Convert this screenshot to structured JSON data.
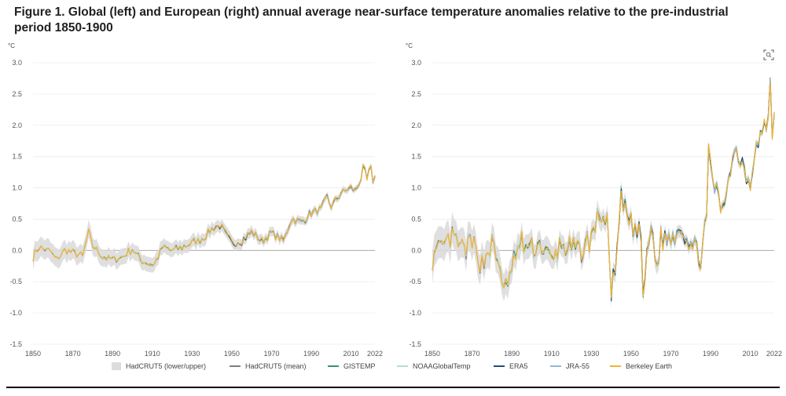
{
  "figure": {
    "title": "Figure 1. Global (left) and European (right) annual average near-surface temperature anomalies relative to the pre-industrial period 1850-1900"
  },
  "toolbar": {
    "expand_icon": "expand-icon"
  },
  "colors": {
    "band": "#dcdcdc",
    "HadCRUT5 (mean)": "#7f7f7f",
    "GISTEMP": "#3f8f6f",
    "NOAAGlobalTemp": "#b5ded4",
    "ERA5": "#1f4e79",
    "JRA-55": "#8fb8e0",
    "Berkeley Earth": "#f2b233"
  },
  "legend": [
    {
      "label": "HadCRUT5 (lower/upper)",
      "kind": "box"
    },
    {
      "label": "HadCRUT5 (mean)",
      "kind": "line"
    },
    {
      "label": "GISTEMP",
      "kind": "line"
    },
    {
      "label": "NOAAGlobalTemp",
      "kind": "line"
    },
    {
      "label": "ERA5",
      "kind": "line"
    },
    {
      "label": "JRA-55",
      "kind": "line"
    },
    {
      "label": "Berkeley Earth",
      "kind": "line"
    }
  ],
  "chart_data": [
    {
      "type": "line",
      "title": "Global",
      "ylabel": "°C",
      "ylim": [
        -1.5,
        3.0
      ],
      "yticks": [
        "3.0",
        "2.5",
        "2.0",
        "1.5",
        "1.0",
        "0.5",
        "0.0",
        "-0.5",
        "-1.0",
        "-1.5"
      ],
      "xlim": [
        1850,
        2022
      ],
      "xticks": [
        "1850",
        "1870",
        "1890",
        "1910",
        "1930",
        "1950",
        "1970",
        "1990",
        "2010",
        "2022"
      ],
      "keypoints": [
        [
          1850,
          -0.1
        ],
        [
          1853,
          0.05
        ],
        [
          1858,
          0.0
        ],
        [
          1862,
          -0.15
        ],
        [
          1866,
          0.0
        ],
        [
          1870,
          -0.03
        ],
        [
          1875,
          -0.1
        ],
        [
          1878,
          0.3
        ],
        [
          1880,
          0.08
        ],
        [
          1885,
          -0.1
        ],
        [
          1890,
          -0.15
        ],
        [
          1895,
          -0.1
        ],
        [
          1900,
          0.02
        ],
        [
          1904,
          -0.15
        ],
        [
          1909,
          -0.22
        ],
        [
          1911,
          -0.22
        ],
        [
          1915,
          0.05
        ],
        [
          1920,
          0.0
        ],
        [
          1925,
          0.05
        ],
        [
          1930,
          0.12
        ],
        [
          1936,
          0.2
        ],
        [
          1940,
          0.35
        ],
        [
          1944,
          0.4
        ],
        [
          1950,
          0.12
        ],
        [
          1955,
          0.15
        ],
        [
          1960,
          0.3
        ],
        [
          1965,
          0.15
        ],
        [
          1970,
          0.28
        ],
        [
          1976,
          0.15
        ],
        [
          1980,
          0.5
        ],
        [
          1985,
          0.45
        ],
        [
          1990,
          0.6
        ],
        [
          1995,
          0.65
        ],
        [
          1998,
          0.85
        ],
        [
          2000,
          0.7
        ],
        [
          2005,
          0.92
        ],
        [
          2010,
          1.0
        ],
        [
          2012,
          0.95
        ],
        [
          2015,
          1.15
        ],
        [
          2016,
          1.3
        ],
        [
          2017,
          1.25
        ],
        [
          2018,
          1.12
        ],
        [
          2019,
          1.25
        ],
        [
          2020,
          1.3
        ],
        [
          2021,
          1.12
        ],
        [
          2022,
          1.17
        ]
      ],
      "series": [
        "HadCRUT5 (mean)",
        "GISTEMP",
        "NOAAGlobalTemp",
        "ERA5",
        "JRA-55",
        "Berkeley Earth"
      ]
    },
    {
      "type": "line",
      "title": "European",
      "ylabel": "°C",
      "ylim": [
        -1.5,
        3.0
      ],
      "yticks": [
        "3.0",
        "2.5",
        "2.0",
        "1.5",
        "1.0",
        "0.5",
        "0.0",
        "-0.5",
        "-1.0",
        "-1.5"
      ],
      "xlim": [
        1850,
        2022
      ],
      "xticks": [
        "1850",
        "1870",
        "1890",
        "1910",
        "1930",
        "1950",
        "1970",
        "1990",
        "2010",
        "2022"
      ],
      "keypoints": [
        [
          1850,
          -0.1
        ],
        [
          1855,
          0.0
        ],
        [
          1860,
          0.2
        ],
        [
          1865,
          0.0
        ],
        [
          1870,
          0.1
        ],
        [
          1875,
          -0.2
        ],
        [
          1880,
          0.1
        ],
        [
          1885,
          -0.4
        ],
        [
          1888,
          -0.7
        ],
        [
          1890,
          -0.2
        ],
        [
          1895,
          0.1
        ],
        [
          1900,
          0.0
        ],
        [
          1905,
          0.1
        ],
        [
          1910,
          -0.2
        ],
        [
          1915,
          0.1
        ],
        [
          1920,
          0.0
        ],
        [
          1925,
          0.0
        ],
        [
          1930,
          0.2
        ],
        [
          1934,
          0.6
        ],
        [
          1938,
          0.4
        ],
        [
          1940,
          -0.6
        ],
        [
          1942,
          -0.4
        ],
        [
          1945,
          0.8
        ],
        [
          1950,
          0.4
        ],
        [
          1955,
          0.2
        ],
        [
          1956,
          -0.7
        ],
        [
          1960,
          0.4
        ],
        [
          1963,
          -0.3
        ],
        [
          1965,
          0.2
        ],
        [
          1970,
          0.2
        ],
        [
          1975,
          0.4
        ],
        [
          1980,
          0.1
        ],
        [
          1985,
          -0.1
        ],
        [
          1988,
          0.5
        ],
        [
          1989,
          1.5
        ],
        [
          1993,
          0.9
        ],
        [
          1996,
          0.6
        ],
        [
          2000,
          1.4
        ],
        [
          2003,
          1.6
        ],
        [
          2006,
          1.4
        ],
        [
          2010,
          1.1
        ],
        [
          2012,
          1.6
        ],
        [
          2015,
          1.8
        ],
        [
          2018,
          2.0
        ],
        [
          2019,
          2.2
        ],
        [
          2020,
          2.65
        ],
        [
          2021,
          1.8
        ],
        [
          2022,
          2.3
        ]
      ],
      "series": [
        "HadCRUT5 (mean)",
        "GISTEMP",
        "NOAAGlobalTemp",
        "ERA5",
        "JRA-55",
        "Berkeley Earth"
      ]
    }
  ]
}
